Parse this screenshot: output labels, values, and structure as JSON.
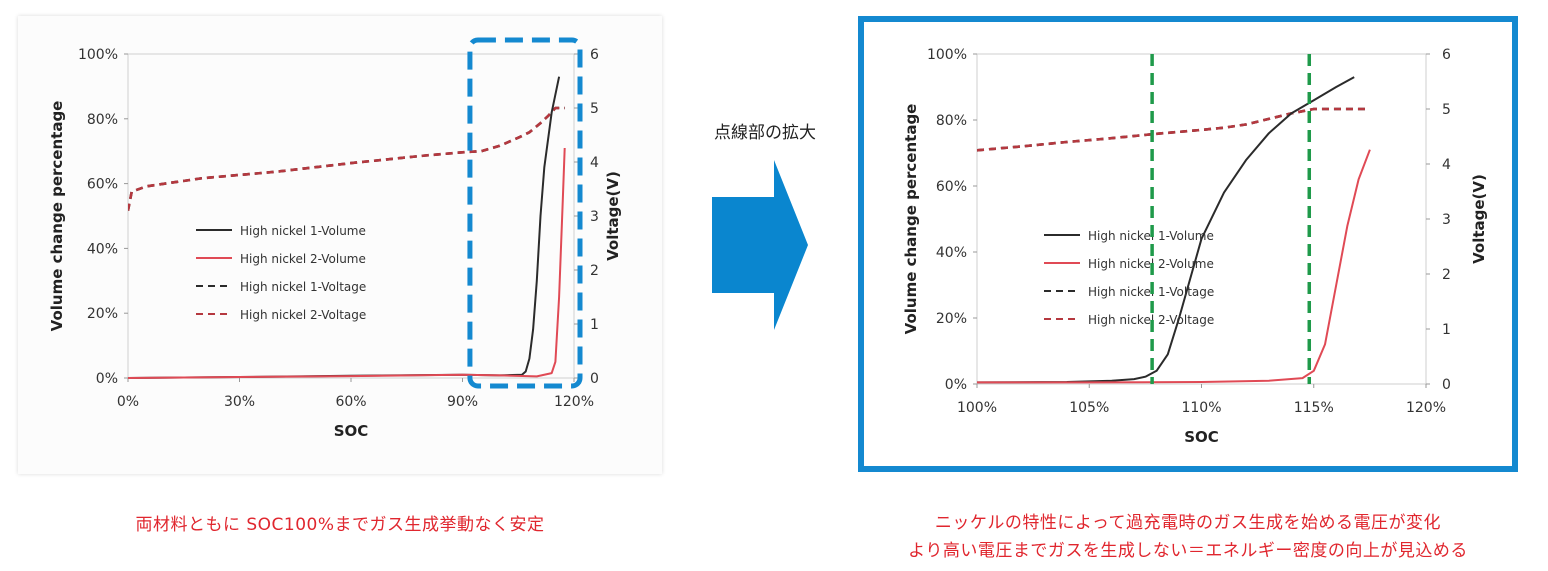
{
  "zoom_label": "点線部の拡大",
  "caption_left": "両材料ともに SOC100%までガス生成挙動なく安定",
  "caption_right_line1": "ニッケルの特性によって過充電時のガス生成を始める電圧が変化",
  "caption_right_line2": "より高い電圧までガスを生成しない＝エネルギー密度の向上が見込める",
  "colors": {
    "black_series": "#2b2b2b",
    "red_series": "#e04a55",
    "red_voltage": "#b5383f",
    "highlight_box": "#1489d0",
    "guide_lines": "#1f9a4a",
    "arrow": "#0a86cf",
    "caption": "#e0262e"
  },
  "chart_data": [
    {
      "type": "line",
      "xlabel": "SOC",
      "ylabel": "Volume change percentage",
      "y2label": "Voltage(V)",
      "xlim": [
        0,
        120
      ],
      "ylim": [
        0,
        100
      ],
      "y2lim": [
        0,
        6
      ],
      "xticks": [
        "0%",
        "30%",
        "60%",
        "90%",
        "120%"
      ],
      "yticks": [
        "0%",
        "20%",
        "40%",
        "60%",
        "80%",
        "100%"
      ],
      "y2ticks": [
        "0",
        "1",
        "2",
        "3",
        "4",
        "5",
        "6"
      ],
      "legend": [
        "High nickel 1-Volume",
        "High nickel 2-Volume",
        "High nickel 1-Voltage",
        "High nickel 2-Voltage"
      ],
      "annotation": "dashed highlight box around 93%–120% SOC",
      "series": [
        {
          "name": "High nickel 1-Volume",
          "axis": "left",
          "style": "solid",
          "color": "black",
          "x": [
            0,
            30,
            60,
            90,
            100,
            106,
            107,
            108,
            109,
            110,
            111,
            112,
            114,
            116
          ],
          "y": [
            0,
            0.3,
            0.7,
            1.0,
            0.8,
            1,
            2,
            6,
            15,
            30,
            50,
            65,
            82,
            93
          ]
        },
        {
          "name": "High nickel 2-Volume",
          "axis": "left",
          "style": "solid",
          "color": "red",
          "x": [
            0,
            30,
            60,
            90,
            100,
            110,
            114,
            115,
            116,
            117,
            117.5
          ],
          "y": [
            0,
            0.3,
            0.6,
            1.0,
            0.8,
            0.5,
            1.5,
            5,
            25,
            55,
            71
          ]
        },
        {
          "name": "High nickel 1-Voltage",
          "axis": "right",
          "style": "dashed",
          "color": "black",
          "x": [
            0,
            1,
            5,
            20,
            40,
            60,
            80,
            90,
            95,
            100,
            105,
            108,
            111,
            113,
            115,
            117.5
          ],
          "y": [
            3.1,
            3.45,
            3.55,
            3.7,
            3.82,
            3.98,
            4.12,
            4.18,
            4.2,
            4.3,
            4.45,
            4.55,
            4.72,
            4.85,
            5.0,
            5.0
          ]
        },
        {
          "name": "High nickel 2-Voltage",
          "axis": "right",
          "style": "dashed",
          "color": "red",
          "x": [
            0,
            1,
            5,
            20,
            40,
            60,
            80,
            90,
            95,
            100,
            105,
            108,
            111,
            113,
            115,
            117.5
          ],
          "y": [
            3.1,
            3.45,
            3.55,
            3.7,
            3.82,
            3.98,
            4.12,
            4.18,
            4.2,
            4.3,
            4.45,
            4.55,
            4.72,
            4.85,
            5.0,
            5.0
          ]
        }
      ]
    },
    {
      "type": "line",
      "xlabel": "SOC",
      "ylabel": "Volume change percentage",
      "y2label": "Voltage(V)",
      "xlim": [
        100,
        120
      ],
      "ylim": [
        0,
        100
      ],
      "y2lim": [
        0,
        6
      ],
      "xticks": [
        "100%",
        "105%",
        "110%",
        "115%",
        "120%"
      ],
      "yticks": [
        "0%",
        "20%",
        "40%",
        "60%",
        "80%",
        "100%"
      ],
      "y2ticks": [
        "0",
        "1",
        "2",
        "3",
        "4",
        "5",
        "6"
      ],
      "legend": [
        "High nickel 1-Volume",
        "High nickel 2-Volume",
        "High nickel 1-Voltage",
        "High nickel 2-Voltage"
      ],
      "annotation": "vertical dashed guide lines at about 107.8% and 114.8% SOC",
      "guide_lines_x": [
        107.8,
        114.8
      ],
      "series": [
        {
          "name": "High nickel 1-Volume",
          "axis": "left",
          "style": "solid",
          "color": "black",
          "x": [
            100,
            104,
            106,
            107,
            107.5,
            108,
            108.5,
            109,
            109.5,
            110,
            111,
            112,
            113,
            114,
            115,
            116,
            116.8
          ],
          "y": [
            0.5,
            0.6,
            1,
            1.5,
            2.2,
            4,
            9,
            20,
            32,
            44,
            58,
            68,
            76,
            82,
            86,
            90,
            93
          ]
        },
        {
          "name": "High nickel 2-Volume",
          "axis": "left",
          "style": "solid",
          "color": "red",
          "x": [
            100,
            105,
            110,
            113,
            114.5,
            115,
            115.5,
            116,
            116.5,
            117,
            117.5
          ],
          "y": [
            0.5,
            0.5,
            0.6,
            1,
            1.8,
            4,
            12,
            30,
            48,
            62,
            71
          ]
        },
        {
          "name": "High nickel 1-Voltage",
          "axis": "right",
          "style": "dashed",
          "color": "black",
          "x": [
            100,
            102,
            104,
            106,
            108,
            110,
            111,
            112,
            113,
            114,
            115,
            116,
            117,
            117.5
          ],
          "y": [
            4.25,
            4.32,
            4.4,
            4.47,
            4.55,
            4.62,
            4.66,
            4.72,
            4.82,
            4.92,
            5.0,
            5.0,
            5.0,
            5.0
          ]
        },
        {
          "name": "High nickel 2-Voltage",
          "axis": "right",
          "style": "dashed",
          "color": "red",
          "x": [
            100,
            102,
            104,
            106,
            108,
            110,
            111,
            112,
            113,
            114,
            115,
            116,
            117,
            117.5
          ],
          "y": [
            4.25,
            4.32,
            4.4,
            4.47,
            4.55,
            4.62,
            4.66,
            4.72,
            4.82,
            4.92,
            5.0,
            5.0,
            5.0,
            5.0
          ]
        }
      ]
    }
  ]
}
